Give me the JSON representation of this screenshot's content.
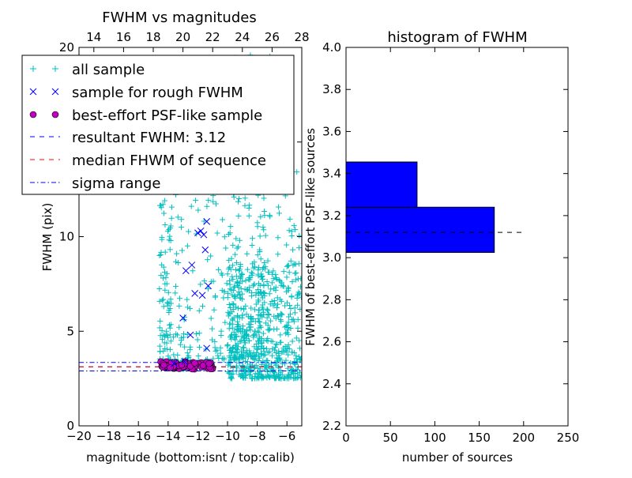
{
  "chart_data": [
    {
      "type": "scatter",
      "title": "FWHM vs magnitudes",
      "xlabel": "magnitude (bottom:isnt / top:calib)",
      "ylabel": "FWHM (pix)",
      "xlim": [
        -20,
        -5
      ],
      "ylim": [
        0,
        20
      ],
      "x_ticks": [
        -20,
        -18,
        -16,
        -14,
        -12,
        -10,
        -8,
        -6
      ],
      "x_tick_labels": [
        "−20",
        "−18",
        "−16",
        "−14",
        "−12",
        "−10",
        "−8",
        "−6"
      ],
      "y_ticks": [
        0,
        5,
        10,
        15,
        20
      ],
      "y_tick_labels": [
        "0",
        "5",
        "10",
        "15",
        "20"
      ],
      "top_xlim": [
        13,
        28
      ],
      "top_x_ticks": [
        14,
        16,
        18,
        20,
        22,
        24,
        26,
        28
      ],
      "top_x_tick_labels": [
        "14",
        "16",
        "18",
        "20",
        "22",
        "24",
        "26",
        "28"
      ],
      "legend_position": "upper-left",
      "legend": [
        {
          "label": "all sample",
          "marker": "plus",
          "color": "#00bfbf"
        },
        {
          "label": "sample for rough FWHM",
          "marker": "x",
          "color": "#0000ff"
        },
        {
          "label": "best-effort PSF-like sample",
          "marker": "circle",
          "color": "#bf00bf"
        },
        {
          "label": "resultant FWHM: 3.12",
          "marker": "dashed-line",
          "color": "#0000ff"
        },
        {
          "label": "median FHWM of sequence",
          "marker": "dashed-line",
          "color": "#ff0000"
        },
        {
          "label": "sigma range",
          "marker": "dashdot-line",
          "color": "#0000ff"
        }
      ],
      "series": [
        {
          "name": "all sample",
          "color": "#00bfbf",
          "marker": "plus",
          "points_note_free": true,
          "clusters": [
            {
              "x_range": [
                -14.5,
                -11.0
              ],
              "y_range": [
                3.0,
                3.5
              ],
              "count": 90
            },
            {
              "x_range": [
                -14.6,
                -13.8
              ],
              "y_range": [
                3.5,
                12.0
              ],
              "count": 70
            },
            {
              "x_range": [
                -14.0,
                -10.0
              ],
              "y_range": [
                3.5,
                13.0
              ],
              "count": 110
            },
            {
              "x_range": [
                -10.0,
                -7.5
              ],
              "y_range": [
                3.5,
                13.0
              ],
              "count": 180
            },
            {
              "x_range": [
                -10.0,
                -5.0
              ],
              "y_range": [
                2.5,
                8.5
              ],
              "count": 520
            },
            {
              "x_range": [
                -9.5,
                -7.0
              ],
              "y_range": [
                13.0,
                20.0
              ],
              "count": 60
            },
            {
              "x_range": [
                -7.5,
                -5.0
              ],
              "y_range": [
                8.5,
                14.0
              ],
              "count": 25
            }
          ]
        },
        {
          "name": "sample for rough FWHM",
          "color": "#0000ff",
          "marker": "x",
          "points": [
            {
              "x": -13.0,
              "y": 5.7
            },
            {
              "x": -12.5,
              "y": 4.8
            },
            {
              "x": -12.8,
              "y": 8.2
            },
            {
              "x": -12.4,
              "y": 8.5
            },
            {
              "x": -12.2,
              "y": 7.0
            },
            {
              "x": -11.7,
              "y": 6.9
            },
            {
              "x": -12.0,
              "y": 10.2
            },
            {
              "x": -11.8,
              "y": 10.3
            },
            {
              "x": -11.6,
              "y": 10.1
            },
            {
              "x": -11.5,
              "y": 9.3
            },
            {
              "x": -11.3,
              "y": 7.4
            },
            {
              "x": -11.4,
              "y": 4.1
            },
            {
              "x": -11.4,
              "y": 10.8
            },
            {
              "x": -13.6,
              "y": 3.3
            },
            {
              "x": -12.9,
              "y": 3.4
            }
          ]
        },
        {
          "name": "best-effort PSF-like sample",
          "color": "#bf00bf",
          "marker": "circle",
          "x_range": [
            -14.5,
            -11.0
          ],
          "y_range": [
            3.0,
            3.4
          ],
          "count": 60
        }
      ],
      "lines": [
        {
          "name": "resultant FWHM: 3.12",
          "y": 3.12,
          "style": "dashed",
          "color": "#0000ff"
        },
        {
          "name": "median FHWM of sequence",
          "y": 3.12,
          "style": "dashed",
          "color": "#ff0000"
        },
        {
          "name": "sigma range upper",
          "y": 3.35,
          "style": "dashdot",
          "color": "#0000ff"
        },
        {
          "name": "sigma range lower",
          "y": 2.9,
          "style": "dashdot",
          "color": "#0000ff"
        }
      ]
    },
    {
      "type": "bar",
      "orientation": "horizontal",
      "title": "histogram of FWHM",
      "xlabel": "number of sources",
      "ylabel": "FWHM of best-effort PSF-like sources",
      "xlim": [
        0,
        250
      ],
      "ylim": [
        2.2,
        4.0
      ],
      "x_ticks": [
        0,
        50,
        100,
        150,
        200,
        250
      ],
      "x_tick_labels": [
        "0",
        "50",
        "100",
        "150",
        "200",
        "250"
      ],
      "y_ticks": [
        2.2,
        2.4,
        2.6,
        2.8,
        3.0,
        3.2,
        3.4,
        3.6,
        3.8,
        4.0
      ],
      "y_tick_labels": [
        "2.2",
        "2.4",
        "2.6",
        "2.8",
        "3.0",
        "3.2",
        "3.4",
        "3.6",
        "3.8",
        "4.0"
      ],
      "bars": [
        {
          "y0": 3.025,
          "y1": 3.24,
          "value": 167
        },
        {
          "y0": 3.24,
          "y1": 3.455,
          "value": 80
        }
      ],
      "bar_color": "#0000ff",
      "reference_line": {
        "y": 3.12,
        "x_range": [
          0,
          200
        ],
        "style": "dashed",
        "color": "#000000"
      }
    }
  ]
}
